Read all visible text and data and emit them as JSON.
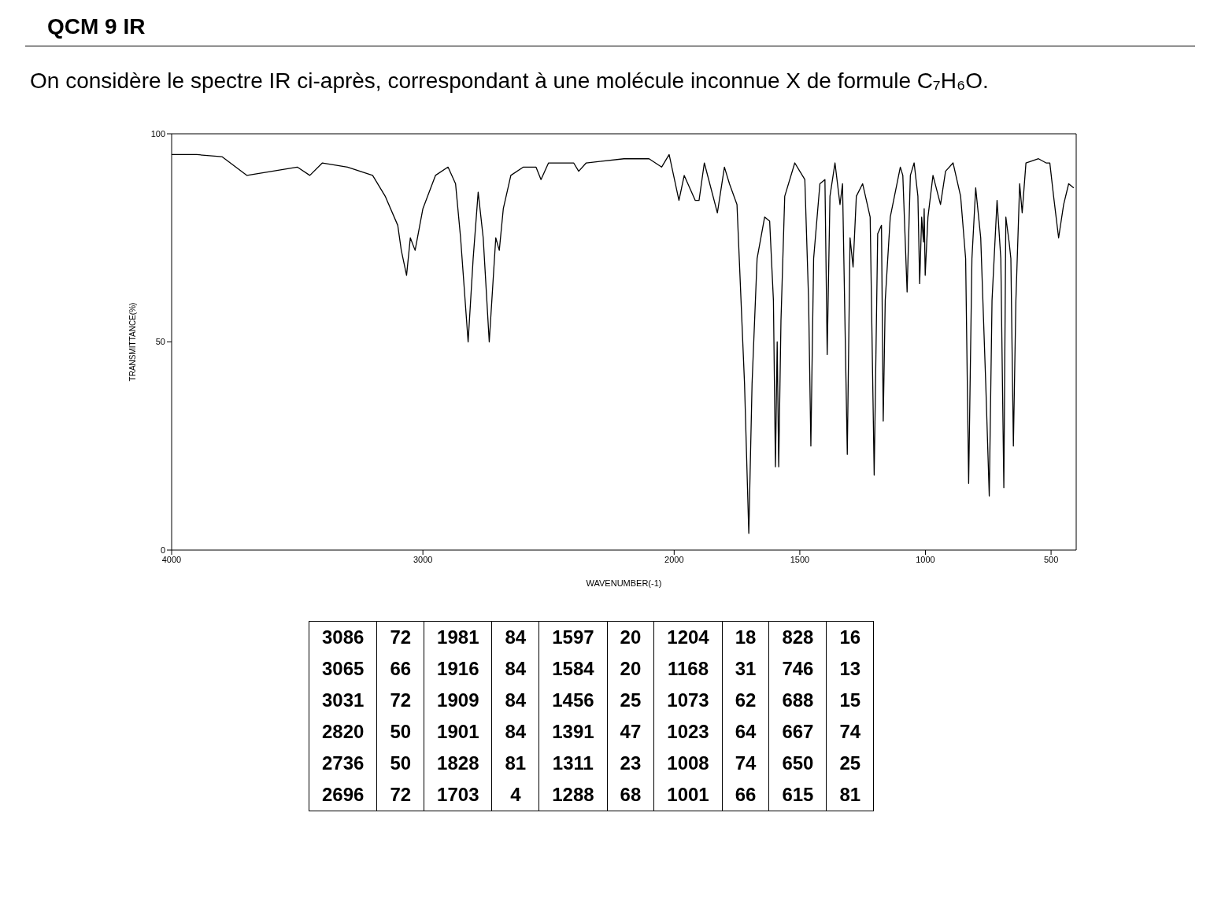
{
  "chart_data": {
    "type": "line",
    "title": "QCM 9 IR",
    "subtitle": "On considère le spectre IR ci-après, correspondant à une molécule inconnue X de formule C₇H₆O.",
    "xlabel": "WAVENUMBER(-1)",
    "ylabel": "TRANSMITTANCE(%)",
    "xlim": [
      4000,
      400
    ],
    "xticks": [
      4000,
      3000,
      2000,
      1500,
      1000,
      500
    ],
    "ylim": [
      0,
      100
    ],
    "yticks": [
      0,
      50,
      100
    ],
    "x": [
      4000,
      3900,
      3800,
      3700,
      3600,
      3500,
      3450,
      3400,
      3300,
      3200,
      3150,
      3100,
      3086,
      3065,
      3050,
      3031,
      3000,
      2950,
      2900,
      2870,
      2850,
      2820,
      2800,
      2780,
      2760,
      2736,
      2710,
      2696,
      2680,
      2650,
      2600,
      2550,
      2530,
      2500,
      2400,
      2380,
      2350,
      2200,
      2100,
      2050,
      2020,
      1981,
      1960,
      1916,
      1909,
      1901,
      1880,
      1828,
      1800,
      1780,
      1750,
      1720,
      1703,
      1690,
      1670,
      1640,
      1620,
      1605,
      1597,
      1590,
      1584,
      1575,
      1560,
      1520,
      1500,
      1480,
      1465,
      1456,
      1445,
      1420,
      1400,
      1391,
      1380,
      1360,
      1340,
      1330,
      1311,
      1300,
      1288,
      1275,
      1250,
      1220,
      1204,
      1190,
      1175,
      1168,
      1160,
      1140,
      1100,
      1090,
      1073,
      1060,
      1045,
      1030,
      1023,
      1015,
      1008,
      1005,
      1001,
      990,
      970,
      940,
      920,
      890,
      860,
      840,
      828,
      815,
      800,
      780,
      760,
      746,
      735,
      715,
      700,
      688,
      680,
      667,
      660,
      650,
      640,
      625,
      615,
      600,
      550,
      520,
      505,
      490,
      470,
      450,
      430,
      410
    ],
    "series": [
      {
        "color": "#000000",
        "values": [
          95,
          95,
          94.5,
          90,
          91,
          92,
          90,
          93,
          92,
          90,
          85,
          78,
          72,
          66,
          75,
          72,
          82,
          90,
          92,
          88,
          75,
          50,
          70,
          86,
          75,
          50,
          75,
          72,
          82,
          90,
          92,
          92,
          89,
          93,
          93,
          91,
          93,
          94,
          94,
          92,
          95,
          84,
          90,
          84,
          84,
          84,
          93,
          81,
          92,
          88,
          83,
          40,
          4,
          40,
          70,
          80,
          79,
          60,
          20,
          50,
          20,
          55,
          85,
          93,
          91,
          89,
          60,
          25,
          70,
          88,
          89,
          47,
          85,
          93,
          83,
          88,
          23,
          75,
          68,
          85,
          88,
          80,
          18,
          76,
          78,
          31,
          60,
          80,
          92,
          90,
          62,
          90,
          93,
          85,
          64,
          80,
          74,
          82,
          66,
          80,
          90,
          83,
          91,
          93,
          85,
          70,
          16,
          70,
          87,
          75,
          40,
          13,
          60,
          84,
          70,
          15,
          80,
          74,
          70,
          25,
          60,
          88,
          81,
          93,
          94,
          93,
          93,
          85,
          75,
          83,
          88,
          87
        ]
      }
    ],
    "annotations": [
      "3086",
      "72",
      "1981",
      "84",
      "1597",
      "20",
      "1204",
      "18",
      "828",
      "16",
      "3065",
      "66",
      "1916",
      "84",
      "1584",
      "20",
      "1168",
      "31",
      "746",
      "13",
      "3031",
      "72",
      "1909",
      "84",
      "1456",
      "25",
      "1073",
      "62",
      "688",
      "15",
      "2820",
      "50",
      "1901",
      "84",
      "1391",
      "47",
      "1023",
      "64",
      "667",
      "74",
      "2736",
      "50",
      "1828",
      "81",
      "1311",
      "23",
      "1008",
      "74",
      "650",
      "25",
      "2696",
      "72",
      "1703",
      "4",
      "1288",
      "68",
      "1001",
      "66",
      "615",
      "81"
    ]
  }
}
